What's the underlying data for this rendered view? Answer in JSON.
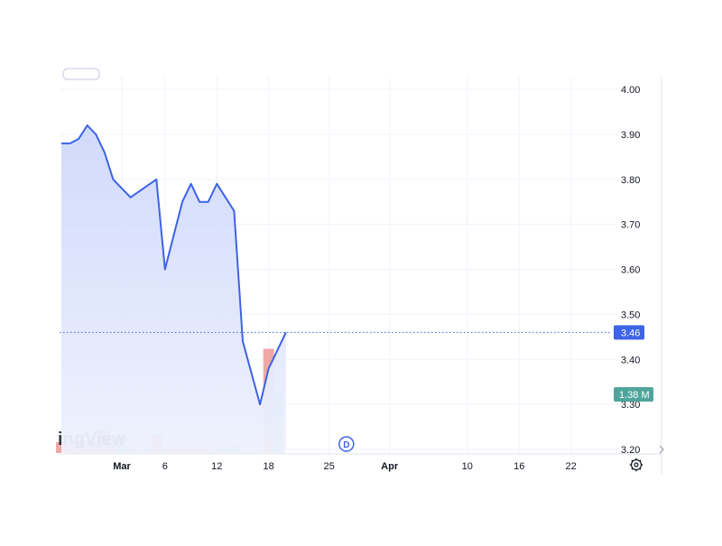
{
  "chart_data": {
    "type": "area",
    "watermark": "ingView",
    "x_tick_labels": [
      "Mar",
      "6",
      "12",
      "18",
      "25",
      "Apr",
      "10",
      "16",
      "22"
    ],
    "y_ticks": [
      "4.00",
      "3.90",
      "3.80",
      "3.70",
      "3.60",
      "3.50",
      "3.40",
      "3.30",
      "3.20"
    ],
    "ylim": [
      3.2,
      4.0
    ],
    "grid": true,
    "price_series": {
      "x": [
        "2024-02-23",
        "2024-02-24",
        "2024-02-25",
        "2024-02-26",
        "2024-02-27",
        "2024-02-28",
        "2024-02-29",
        "2024-03-02",
        "2024-03-05",
        "2024-03-06",
        "2024-03-08",
        "2024-03-09",
        "2024-03-10",
        "2024-03-11",
        "2024-03-12",
        "2024-03-14",
        "2024-03-15",
        "2024-03-17",
        "2024-03-18",
        "2024-03-19",
        "2024-03-20"
      ],
      "y": [
        3.88,
        3.88,
        3.89,
        3.92,
        3.9,
        3.86,
        3.8,
        3.76,
        3.8,
        3.6,
        3.75,
        3.79,
        3.75,
        3.75,
        3.79,
        3.73,
        3.44,
        3.3,
        3.38,
        3.42,
        3.46
      ],
      "color": "#3d63e6"
    },
    "volume_series": {
      "x": [
        "2024-02-23",
        "2024-02-24",
        "2024-02-25",
        "2024-02-26",
        "2024-02-27",
        "2024-02-28",
        "2024-02-29",
        "2024-03-01",
        "2024-03-02",
        "2024-03-04",
        "2024-03-05",
        "2024-03-06",
        "2024-03-07",
        "2024-03-08",
        "2024-03-09",
        "2024-03-10",
        "2024-03-11",
        "2024-03-12",
        "2024-03-13",
        "2024-03-14",
        "2024-03-18",
        "2024-03-19"
      ],
      "level": [
        0.35,
        0.25,
        0.4,
        0.3,
        0.35,
        0.75,
        0.3,
        0.55,
        0.1,
        0.15,
        0.6,
        0.1,
        0.2,
        0.2,
        0.2,
        0.2,
        0.05,
        0.05,
        0.2,
        0.25,
        3.4,
        1.95
      ],
      "direction": [
        "down",
        "down",
        "down",
        "down",
        "down",
        "down",
        "down",
        "up",
        "up",
        "up",
        "down",
        "down",
        "down",
        "down",
        "down",
        "down",
        "down",
        "up",
        "up",
        "up",
        "down",
        "up"
      ]
    },
    "current_price": {
      "value": 3.46,
      "label": "3.46"
    },
    "current_volume_label": "1.38 M",
    "dividend_marker": {
      "date": "2024-03-27",
      "label": "D"
    },
    "colors": {
      "line": "#3d63e6",
      "area_top": "#cfd8fb",
      "area_bottom": "#eef1fd",
      "volume_up": "#a6d7cf",
      "volume_down": "#eea9a6",
      "grid": "#f0f3fa",
      "axis_text": "#131722",
      "price_badge": "#3d63e6",
      "volume_badge": "#4fa59b"
    },
    "icons": {
      "settings": "gear-icon"
    }
  }
}
